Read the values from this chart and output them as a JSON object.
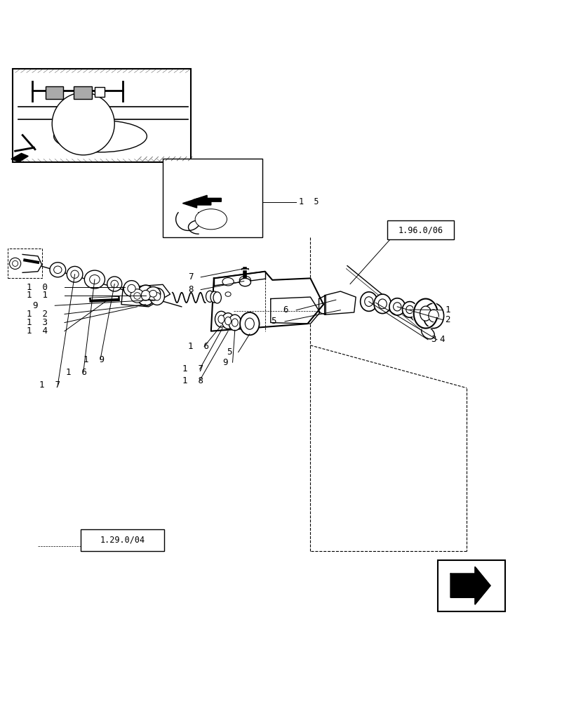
{
  "bg_color": "#ffffff",
  "line_color": "#000000",
  "label_color": "#000000",
  "fig_width": 8.12,
  "fig_height": 10.0,
  "dpi": 100,
  "ref1_text": "1.96.0/06",
  "ref2_text": "1.29.0/04"
}
